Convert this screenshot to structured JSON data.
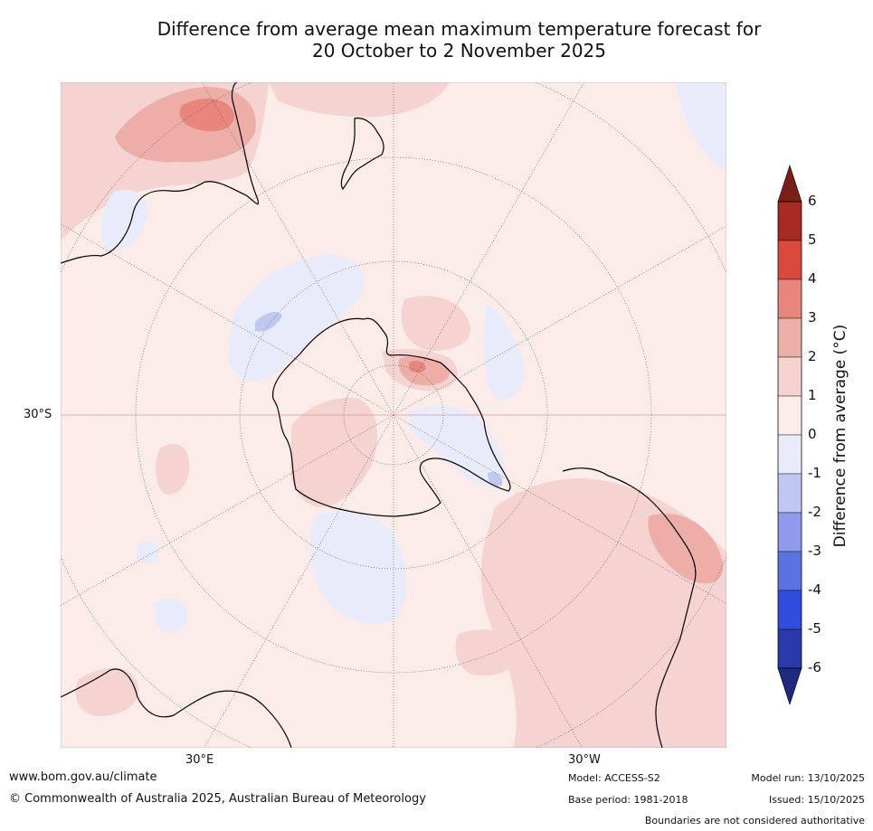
{
  "title": {
    "line1": "Difference from average mean maximum temperature forecast for",
    "line2": "20 October to 2 November 2025"
  },
  "map": {
    "lat_label": "30°S",
    "lon_labels": {
      "east": "30°E",
      "west": "30°W"
    }
  },
  "colorbar": {
    "label": "Difference from average (°C)",
    "ticks": [
      "6",
      "5",
      "4",
      "3",
      "2",
      "1",
      "0",
      "-1",
      "-2",
      "-3",
      "-4",
      "-5",
      "-6"
    ],
    "bins": [
      {
        "range": "5 to 6",
        "color": "#a52a22"
      },
      {
        "range": "4 to 5",
        "color": "#d94a3d"
      },
      {
        "range": "3 to 4",
        "color": "#e8857c"
      },
      {
        "range": "2 to 3",
        "color": "#edaea8"
      },
      {
        "range": "1 to 2",
        "color": "#f4d3d0"
      },
      {
        "range": "0 to 1",
        "color": "#fbecea"
      },
      {
        "range": "-1 to 0",
        "color": "#e8ebfa"
      },
      {
        "range": "-2 to -1",
        "color": "#c0c8f2"
      },
      {
        "range": "-3 to -2",
        "color": "#8d9bea"
      },
      {
        "range": "-4 to -3",
        "color": "#5d72e2"
      },
      {
        "range": "-5 to -4",
        "color": "#2f4ee0"
      },
      {
        "range": "-6 to -5",
        "color": "#2a3aaa"
      }
    ],
    "over_color": "#7a1f18",
    "under_color": "#1e2a80"
  },
  "footer": {
    "website": "www.bom.gov.au/climate",
    "copyright": "© Commonwealth of Australia 2025, Australian Bureau of Meteorology",
    "model": "Model: ACCESS-S2",
    "base_period": "Base period: 1981-2018",
    "model_run": "Model run: 13/10/2025",
    "issued": "Issued: 15/10/2025",
    "disclaimer": "Boundaries are not considered authoritative"
  }
}
